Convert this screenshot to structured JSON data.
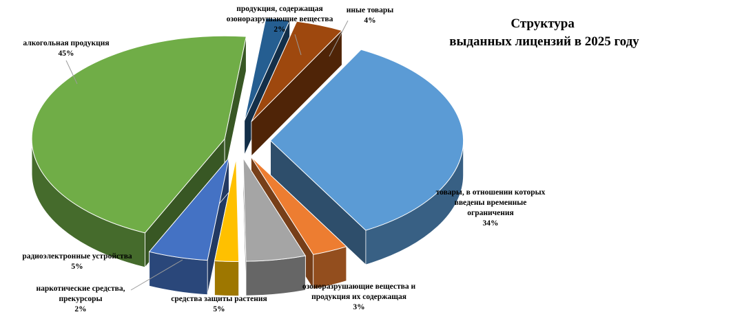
{
  "chart_data": {
    "type": "pie",
    "variant": "3d-exploded",
    "title": [
      "Структура",
      "выданных лицензий в 2025 году"
    ],
    "slices": [
      {
        "label": [
          "товары, в отношении которых",
          "введены временные",
          "ограничения"
        ],
        "value_label": "34%",
        "value": 34,
        "color": "#5B9BD5"
      },
      {
        "label": [
          "озоноразрушающие вещества и",
          "продукция их содержащая"
        ],
        "value_label": "3%",
        "value": 3,
        "color": "#ED7D31"
      },
      {
        "label": [
          "средства защиты растения"
        ],
        "value_label": "5%",
        "value": 5,
        "color": "#A5A5A5"
      },
      {
        "label": [
          "наркотические средства,",
          "прекурсоры"
        ],
        "value_label": "2%",
        "value": 2,
        "color": "#FFC000"
      },
      {
        "label": [
          "радиоэлектронные устройства"
        ],
        "value_label": "5%",
        "value": 5,
        "color": "#4472C4"
      },
      {
        "label": [
          "алкогольная продукция"
        ],
        "value_label": "45%",
        "value": 45,
        "color": "#70AD47"
      },
      {
        "label": [
          "продукция, содержащая",
          "озоноразрушающие вещества"
        ],
        "value_label": "2%",
        "value": 2,
        "color": "#255E91"
      },
      {
        "label": [
          "иные товары"
        ],
        "value_label": "4%",
        "value": 4,
        "color": "#9E480E"
      }
    ],
    "legend": "none"
  }
}
